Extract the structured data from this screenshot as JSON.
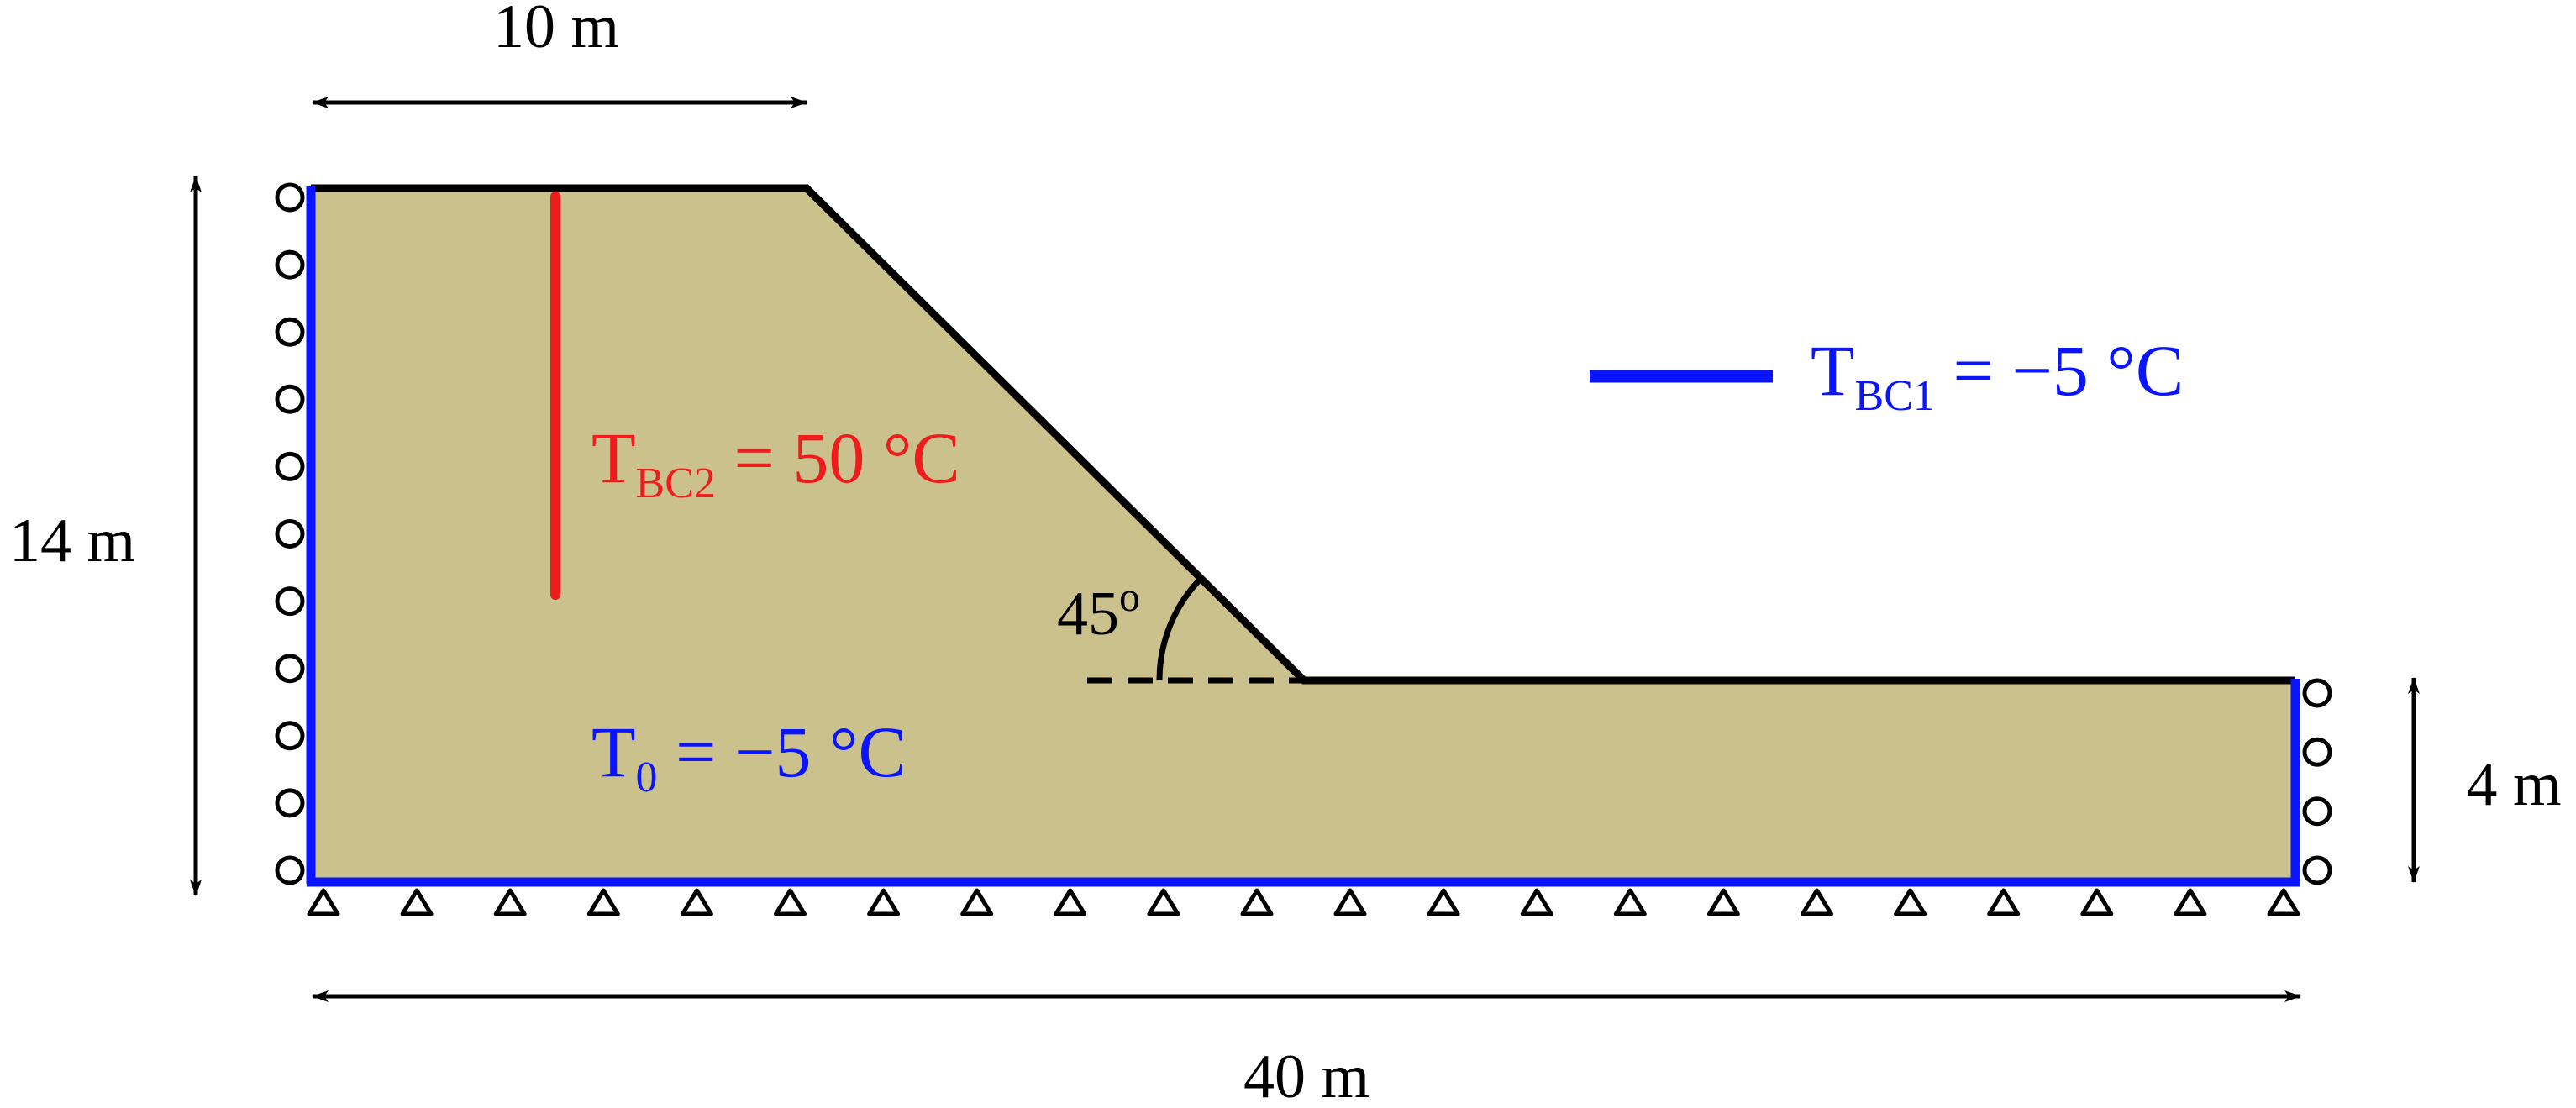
{
  "dimensions": {
    "top_width": "10 m",
    "height_left": "14 m",
    "height_right": "4 m",
    "total_width": "40 m"
  },
  "slope_angle": {
    "value": "45",
    "unit": "o"
  },
  "heater_bc": {
    "T": "T",
    "sub": "BC2",
    "rest": " = 50 °C",
    "color": "#ee1c1c"
  },
  "boundary_bc": {
    "T": "T",
    "sub": "BC1",
    "rest": " = −5 °C",
    "color": "#0a14ff"
  },
  "initial_temp": {
    "T": "T",
    "sub": "0",
    "rest": " = −5 °C",
    "color": "#0a14ff"
  },
  "colors": {
    "soil": "#cbc18d",
    "outline": "#000000",
    "boundary": "#0a14ff",
    "heater": "#ee1c1c"
  },
  "supports": {
    "left_rollers": 11,
    "right_rollers": 4,
    "bottom_pins": 22
  }
}
